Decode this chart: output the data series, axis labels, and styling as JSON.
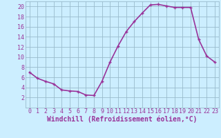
{
  "x": [
    0,
    1,
    2,
    3,
    4,
    5,
    6,
    7,
    8,
    9,
    10,
    11,
    12,
    13,
    14,
    15,
    16,
    17,
    18,
    19,
    20,
    21,
    22,
    23
  ],
  "y": [
    7,
    5.8,
    5.2,
    4.7,
    3.5,
    3.3,
    3.2,
    2.5,
    2.4,
    5.2,
    9.0,
    12.2,
    15.0,
    17.0,
    18.7,
    20.3,
    20.4,
    20.1,
    19.8,
    19.8,
    19.8,
    13.5,
    10.2,
    9.0
  ],
  "line_color": "#993399",
  "marker": "+",
  "marker_size": 3,
  "marker_lw": 1.0,
  "bg_color": "#cceeff",
  "grid_color": "#99bbcc",
  "tick_label_color": "#993399",
  "xlabel": "Windchill (Refroidissement éolien,°C)",
  "xlabel_color": "#993399",
  "xlabel_fontsize": 7,
  "xlim": [
    -0.5,
    23.5
  ],
  "ylim": [
    0,
    21
  ],
  "yticks": [
    2,
    4,
    6,
    8,
    10,
    12,
    14,
    16,
    18,
    20
  ],
  "xticks": [
    0,
    1,
    2,
    3,
    4,
    5,
    6,
    7,
    8,
    9,
    10,
    11,
    12,
    13,
    14,
    15,
    16,
    17,
    18,
    19,
    20,
    21,
    22,
    23
  ],
  "tick_fontsize": 6,
  "linewidth": 1.2
}
